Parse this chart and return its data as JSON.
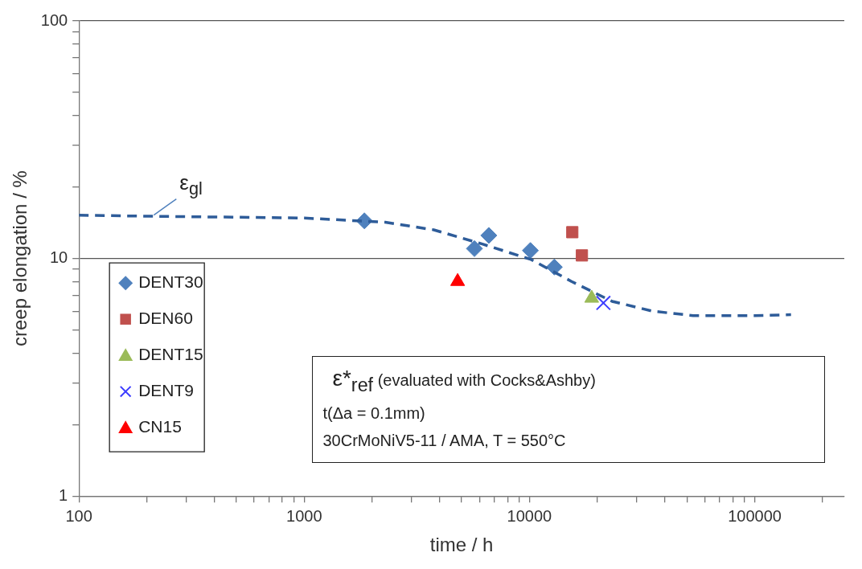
{
  "chart_data": {
    "type": "scatter",
    "xlabel": "time / h",
    "ylabel": "creep elongation / %",
    "log": "xy",
    "grid": "y",
    "legend": "bottom left",
    "xlim": [
      100,
      250000
    ],
    "ylim": [
      1,
      100
    ],
    "xticks": [
      100,
      {
        "value": 200,
        "label": null
      },
      {
        "value": 300,
        "label": null
      },
      {
        "value": 400,
        "label": null
      },
      {
        "value": 500,
        "label": null
      },
      {
        "value": 600,
        "label": null
      },
      {
        "value": 700,
        "label": null
      },
      {
        "value": 800,
        "label": null
      },
      {
        "value": 900,
        "label": null
      },
      1000,
      {
        "value": 2000,
        "label": null
      },
      {
        "value": 3000,
        "label": null
      },
      {
        "value": 4000,
        "label": null
      },
      {
        "value": 5000,
        "label": null
      },
      {
        "value": 6000,
        "label": null
      },
      {
        "value": 7000,
        "label": null
      },
      {
        "value": 8000,
        "label": null
      },
      {
        "value": 9000,
        "label": null
      },
      10000,
      {
        "value": 20000,
        "label": null
      },
      {
        "value": 30000,
        "label": null
      },
      {
        "value": 40000,
        "label": null
      },
      {
        "value": 50000,
        "label": null
      },
      {
        "value": 60000,
        "label": null
      },
      {
        "value": 70000,
        "label": null
      },
      {
        "value": 80000,
        "label": null
      },
      {
        "value": 90000,
        "label": null
      },
      100000,
      {
        "value": 200000,
        "label": null
      }
    ],
    "yticks": [
      1,
      {
        "value": 2,
        "label": null
      },
      {
        "value": 3,
        "label": null
      },
      {
        "value": 4,
        "label": null
      },
      {
        "value": 5,
        "label": null
      },
      {
        "value": 6,
        "label": null
      },
      {
        "value": 7,
        "label": null
      },
      {
        "value": 8,
        "label": null
      },
      {
        "value": 9,
        "label": null
      },
      10,
      {
        "value": 20,
        "label": null
      },
      {
        "value": 30,
        "label": null
      },
      {
        "value": 40,
        "label": null
      },
      {
        "value": 50,
        "label": null
      },
      {
        "value": 60,
        "label": null
      },
      {
        "value": 70,
        "label": null
      },
      {
        "value": 80,
        "label": null
      },
      {
        "value": 90,
        "label": null
      },
      100
    ],
    "series": [
      {
        "type": "line",
        "color": "#2e5c99",
        "line_style": "dashed",
        "marker": "none",
        "x": [
          100,
          290,
          1000,
          2290,
          3760,
          6180,
          10170,
          15380,
          23280,
          35200,
          53300,
          100000,
          145000
        ],
        "values": [
          15.2,
          15.0,
          14.8,
          14.2,
          13.2,
          11.5,
          9.9,
          8.0,
          6.6,
          6.0,
          5.75,
          5.75,
          5.8
        ]
      },
      {
        "name": "DENT30",
        "color": "#4f81bd",
        "marker": "diamond",
        "x": [
          1850,
          5700,
          6600,
          10100,
          12900
        ],
        "values": [
          14.4,
          11.0,
          12.5,
          10.8,
          9.2
        ]
      },
      {
        "name": "DEN60",
        "color": "#c0504d",
        "marker": "square",
        "x": [
          15500,
          17100
        ],
        "values": [
          12.9,
          10.3
        ]
      },
      {
        "name": "DENT15",
        "color": "#9bbb59",
        "marker": "triangle",
        "x": [
          18900
        ],
        "values": [
          6.8
        ]
      },
      {
        "name": "DENT9",
        "color": "#3b3bff",
        "marker": "cross",
        "x": [
          21300
        ],
        "values": [
          6.5
        ]
      },
      {
        "name": "CN15",
        "color": "#ff0000",
        "marker": "triangle",
        "x": [
          4800
        ],
        "values": [
          8.0
        ]
      }
    ],
    "annotations": [
      {
        "text": "ε$_{gl}$",
        "x": 215,
        "y": 15.0
      },
      "ε*$_{ref}$  (evaluated with Cocks&Ashby)",
      "t(Δa = 0.1mm)",
      "30CrMoNiV5-11 / AMA, T = 550°C"
    ]
  }
}
